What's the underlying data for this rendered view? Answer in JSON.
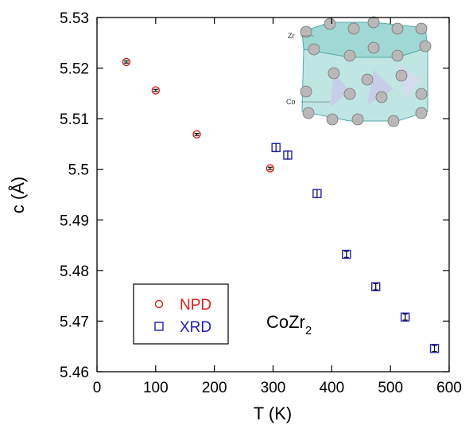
{
  "chart_data": {
    "type": "scatter",
    "xlabel": "T (K)",
    "ylabel": "c (Å)",
    "xlim": [
      0,
      600
    ],
    "xticks": [
      0,
      100,
      200,
      300,
      400,
      500,
      600
    ],
    "ylim": [
      5.46,
      5.53
    ],
    "yticks": [
      5.46,
      5.47,
      5.48,
      5.49,
      5.5,
      5.51,
      5.52,
      5.53
    ],
    "series": [
      {
        "name": "NPD",
        "color": "#d42020",
        "marker": "circle",
        "x": [
          50,
          100,
          170,
          295
        ],
        "values": [
          5.5212,
          5.5156,
          5.5069,
          5.5002
        ],
        "errors": [
          0.0002,
          0.0002,
          0.0002,
          0.0002
        ]
      },
      {
        "name": "XRD",
        "color": "#2020b0",
        "marker": "square",
        "x": [
          305,
          325,
          375,
          425,
          475,
          525,
          575
        ],
        "values": [
          5.5043,
          5.5028,
          5.4952,
          5.4832,
          5.4768,
          5.4708,
          5.4646
        ],
        "errors": [
          0.0008,
          0.0008,
          0.0008,
          0.0006,
          0.0006,
          0.0006,
          0.0006
        ]
      }
    ],
    "annotation": {
      "text": "CoZr",
      "subscript": "2"
    },
    "inset_labels": [
      "Zr",
      "Co"
    ]
  }
}
